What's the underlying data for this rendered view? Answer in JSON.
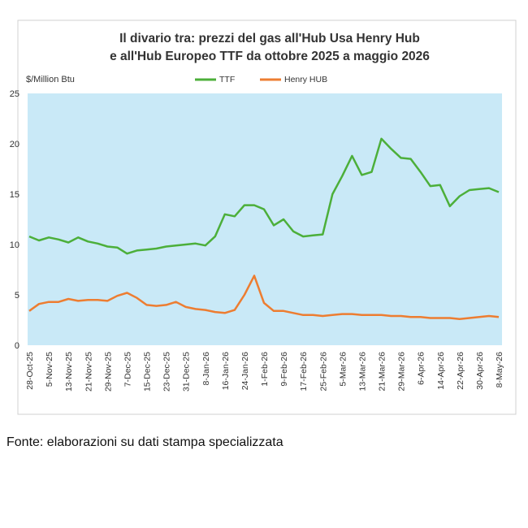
{
  "chart_data": {
    "type": "line",
    "title": [
      "Il divario tra: prezzi del gas all'Hub Usa Henry Hub",
      "e all'Hub Europeo TTF da ottobre 2025 a maggio 2026"
    ],
    "y_label": "$/Million Btu",
    "categories": [
      "28-Oct-25",
      null,
      "5-Nov-25",
      null,
      "13-Nov-25",
      null,
      "21-Nov-25",
      null,
      "29-Nov-25",
      null,
      "7-Dec-25",
      null,
      "15-Dec-25",
      null,
      "23-Dec-25",
      null,
      "31-Dec-25",
      null,
      "8-Jan-26",
      null,
      "16-Jan-26",
      null,
      "24-Jan-26",
      null,
      "1-Feb-26",
      null,
      "9-Feb-26",
      null,
      "17-Feb-26",
      null,
      "25-Feb-26",
      null,
      "5-Mar-26",
      null,
      "13-Mar-26",
      null,
      "21-Mar-26",
      null,
      "29-Mar-26",
      null,
      "6-Apr-26",
      null,
      "14-Apr-26",
      null,
      "22-Apr-26",
      null,
      "30-Apr-26",
      null,
      "8-May-26"
    ],
    "series": [
      {
        "name": "TTF",
        "color": "#4caf3a",
        "values": [
          10.8,
          10.4,
          10.7,
          10.5,
          10.2,
          10.7,
          10.3,
          10.1,
          9.8,
          9.7,
          9.1,
          9.4,
          9.5,
          9.6,
          9.8,
          9.9,
          10.0,
          10.1,
          9.9,
          10.8,
          13.0,
          12.8,
          13.9,
          13.9,
          13.5,
          11.9,
          12.5,
          11.3,
          10.8,
          10.9,
          11.0,
          15.0,
          16.8,
          18.8,
          16.9,
          17.2,
          20.5,
          19.5,
          18.6,
          18.5,
          17.2,
          15.8,
          15.9,
          13.8,
          14.8,
          15.4,
          15.5,
          15.6,
          15.2
        ]
      },
      {
        "name": "Henry HUB",
        "color": "#ed7d31",
        "values": [
          3.4,
          4.1,
          4.3,
          4.3,
          4.6,
          4.4,
          4.5,
          4.5,
          4.4,
          4.9,
          5.2,
          4.7,
          4.0,
          3.9,
          4.0,
          4.3,
          3.8,
          3.6,
          3.5,
          3.3,
          3.2,
          3.5,
          5.0,
          6.9,
          4.2,
          3.4,
          3.4,
          3.2,
          3.0,
          3.0,
          2.9,
          3.0,
          3.1,
          3.1,
          3.0,
          3.0,
          3.0,
          2.9,
          2.9,
          2.8,
          2.8,
          2.7,
          2.7,
          2.7,
          2.6,
          2.7,
          2.8,
          2.9,
          2.8
        ]
      }
    ],
    "ylim": [
      0,
      25
    ],
    "yticks": [
      0,
      5,
      10,
      15,
      20,
      25
    ],
    "grid": false,
    "plot_background": "#c9e9f7",
    "legend": "top"
  },
  "source": "Fonte: elaborazioni su dati stampa specializzata"
}
